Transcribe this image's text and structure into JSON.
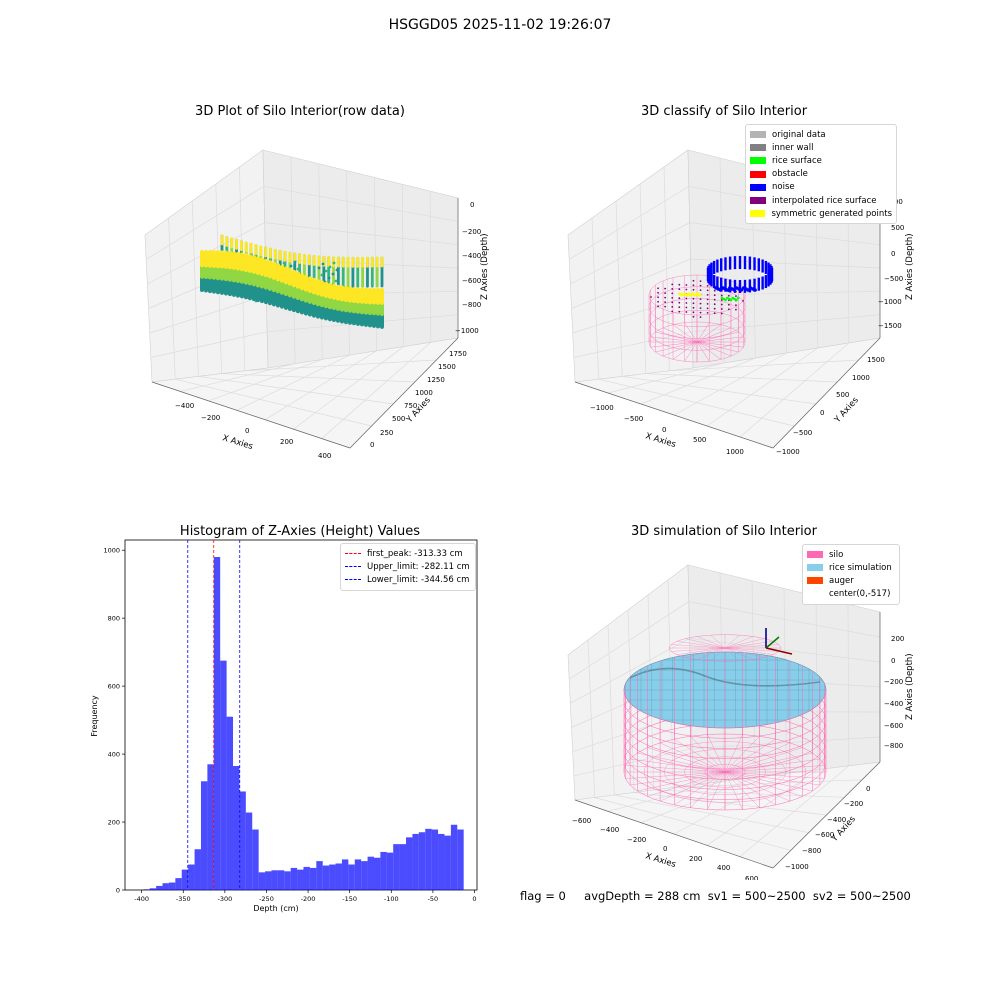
{
  "suptitle": "HSGGD05 2025-11-02 19:26:07",
  "footer": {
    "flag": "flag = 0",
    "stats": "avgDepth = 288 cm  sv1 = 500~2500  sv2 = 500~2500"
  },
  "chart_data": [
    {
      "type": "scatter3d",
      "title": "3D Plot of Silo Interior(row data)",
      "xlabel": "X Axies",
      "ylabel": "Y Axies",
      "zlabel": "Z Axies (Depth)",
      "x_ticks": [
        "−400",
        "−200",
        "0",
        "200",
        "400"
      ],
      "y_ticks": [
        "0",
        "250",
        "500",
        "750",
        "1000",
        "1250",
        "1500",
        "1750"
      ],
      "z_ticks": [
        "0",
        "−200",
        "−400",
        "−600",
        "−800",
        "−1000"
      ],
      "colormap": [
        "#440154",
        "#31688e",
        "#21918c",
        "#35b779",
        "#90d743",
        "#fde725"
      ],
      "grid": true
    },
    {
      "type": "scatter3d",
      "title": "3D classify of Silo Interior",
      "xlabel": "X Axies",
      "ylabel": "Y Axies",
      "zlabel": "Z Axies (Depth)",
      "x_ticks": [
        "−1000",
        "−500",
        "0",
        "500",
        "1000"
      ],
      "y_ticks": [
        "−1000",
        "−500",
        "0",
        "500",
        "1000",
        "1500"
      ],
      "z_ticks": [
        "1000",
        "500",
        "0",
        "−500",
        "−1000",
        "−1500"
      ],
      "legend": {
        "position": "top-right",
        "entries": [
          {
            "label": "original data",
            "color": "#b3b3b3"
          },
          {
            "label": "inner wall",
            "color": "#808080"
          },
          {
            "label": "rice surface",
            "color": "#00ff00"
          },
          {
            "label": "obstacle",
            "color": "#ff0000"
          },
          {
            "label": "noise",
            "color": "#0000ff"
          },
          {
            "label": "interpolated rice surface",
            "color": "#800080"
          },
          {
            "label": "symmetric generated points",
            "color": "#ffff00"
          }
        ]
      },
      "grid": true
    },
    {
      "type": "bar",
      "title": "Histogram of Z-Axies (Height) Values",
      "xlabel": "Depth (cm)",
      "ylabel": "Frequency",
      "xlim": [
        -420,
        3
      ],
      "ylim": [
        0,
        1030
      ],
      "x_ticks": [
        -400,
        -350,
        -300,
        -250,
        -200,
        -150,
        -100,
        -50,
        0
      ],
      "y_ticks": [
        0,
        200,
        400,
        600,
        800,
        1000
      ],
      "bin_start": -398,
      "bin_width": 7.7,
      "values": [
        2,
        5,
        12,
        20,
        22,
        35,
        60,
        75,
        120,
        320,
        370,
        980,
        675,
        510,
        365,
        290,
        228,
        178,
        52,
        55,
        58,
        58,
        55,
        65,
        60,
        68,
        65,
        85,
        72,
        75,
        78,
        90,
        75,
        90,
        85,
        98,
        95,
        112,
        110,
        135,
        135,
        155,
        165,
        170,
        180,
        178,
        165,
        160,
        192,
        178
      ],
      "color": "#0000ff",
      "lines": [
        {
          "label": "first_peak: -313.33 cm",
          "x": -313.33,
          "color": "#ff0000"
        },
        {
          "label": "Upper_limit: -282.11 cm",
          "x": -282.11,
          "color": "#0000ff"
        },
        {
          "label": "Lower_limit: -344.56 cm",
          "x": -344.56,
          "color": "#0000ff"
        }
      ],
      "legend": {
        "position": "top-right"
      }
    },
    {
      "type": "surface3d",
      "title": "3D simulation of Silo Interior",
      "xlabel": "X Axies",
      "ylabel": "Y Axies",
      "zlabel": "Z Axies (Depth)",
      "x_ticks": [
        "−600",
        "−400",
        "−200",
        "0",
        "200",
        "400",
        "600"
      ],
      "y_ticks": [
        "0",
        "−200",
        "−400",
        "−600",
        "−800",
        "−1000"
      ],
      "z_ticks": [
        "200",
        "0",
        "−200",
        "−400",
        "−600",
        "−800"
      ],
      "legend": {
        "position": "top-right",
        "entries": [
          {
            "label": "silo",
            "color": "#ff69b4"
          },
          {
            "label": "rice simulation",
            "color": "#87ceeb"
          },
          {
            "label": "auger",
            "color": "#ff4500"
          },
          {
            "label": "center(0,-517)",
            "color": ""
          }
        ]
      },
      "grid": true
    }
  ]
}
